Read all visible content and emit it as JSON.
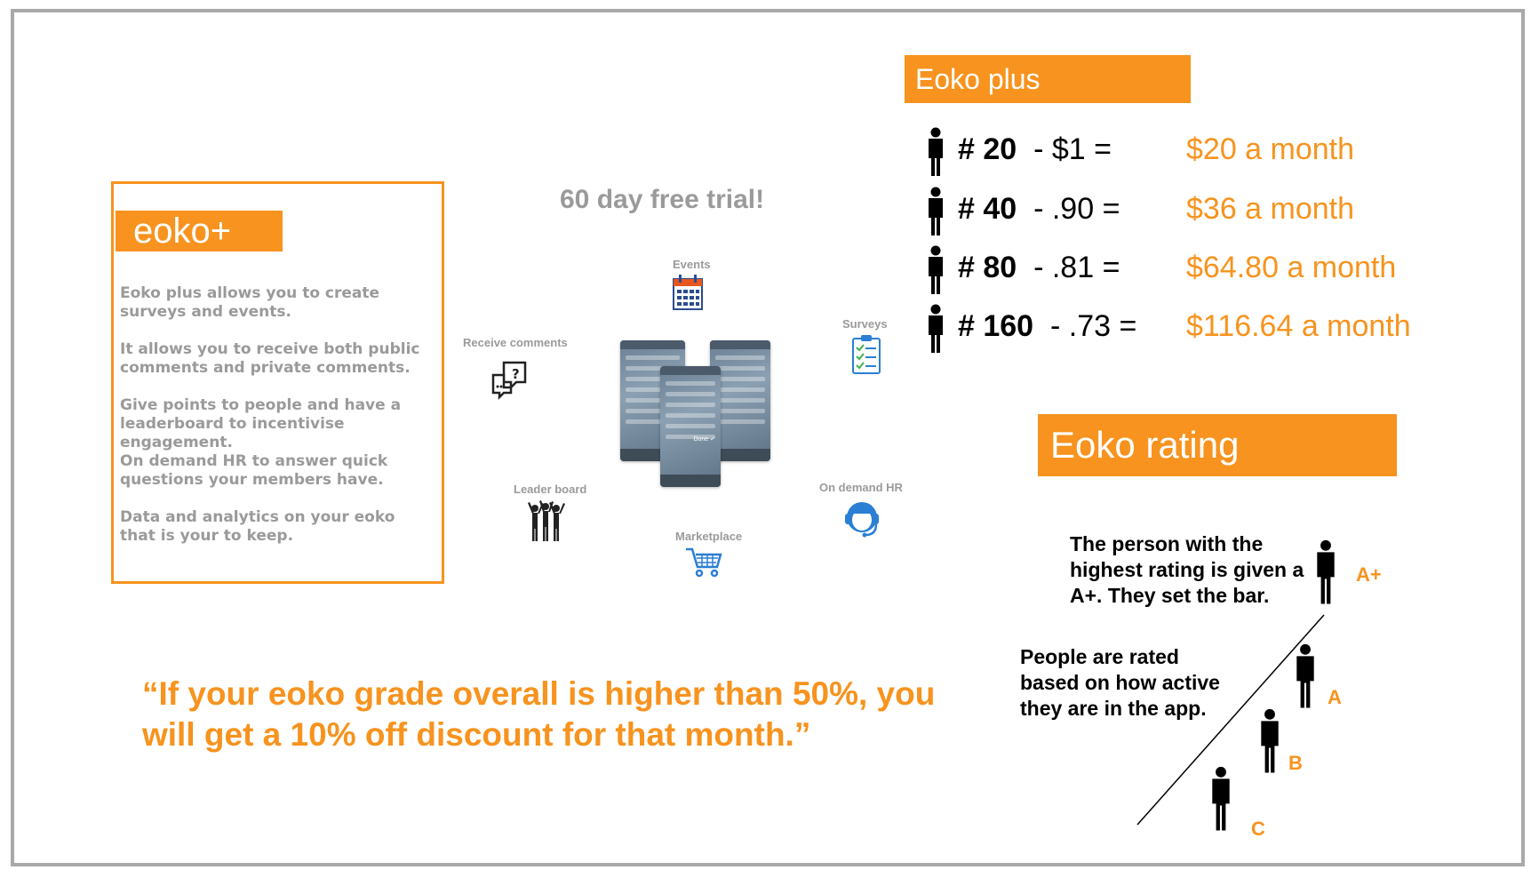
{
  "card": {
    "title": "eoko+",
    "paragraphs": [
      "Eoko plus allows you to create surveys and events.",
      "It allows you to receive both public comments and private comments.",
      "Give points to people and have a leaderboard to incentivise engagement.",
      "On demand HR to answer quick questions your members have.",
      "Data and analytics on your eoko that is your to keep."
    ]
  },
  "diagram": {
    "trial": "60 day  free trial!",
    "features": {
      "events": "Events",
      "surveys": "Surveys",
      "receive_comments": "Receive comments",
      "leader_board": "Leader board",
      "on_demand_hr": "On demand HR",
      "marketplace": "Marketplace"
    },
    "icons": {
      "events": "calendar-icon",
      "surveys": "clipboard-checklist-icon",
      "receive_comments": "speech-bubbles-icon",
      "leader_board": "cheering-people-icon",
      "on_demand_hr": "support-agent-icon",
      "marketplace": "shopping-cart-icon"
    },
    "phone_badge": "Done ✓"
  },
  "pricing": {
    "title": "Eoko plus",
    "rows": [
      {
        "count": "# 20",
        "rate": "-  $1 =",
        "total": "$20 a month"
      },
      {
        "count": "# 40",
        "rate": "-  .90 =",
        "total": "$36 a month"
      },
      {
        "count": "# 80",
        "rate": "-  .81 =",
        "total": "$64.80 a month"
      },
      {
        "count": "# 160",
        "rate": "-  .73 =",
        "total": "$116.64 a month"
      }
    ]
  },
  "rating": {
    "title": "Eoko rating",
    "top_text": "The person with the highest rating is given a A+. They set the bar.",
    "side_text": "People are rated based on how active they are in the app.",
    "grades": [
      "A+",
      "A",
      "B",
      "C"
    ]
  },
  "quote": "“If your eoko grade overall is higher than 50%, you will get a 10% off discount for that month.”",
  "colors": {
    "accent": "#f7931e",
    "muted": "#9a9a9a",
    "icon_blue": "#2a7fd4"
  }
}
